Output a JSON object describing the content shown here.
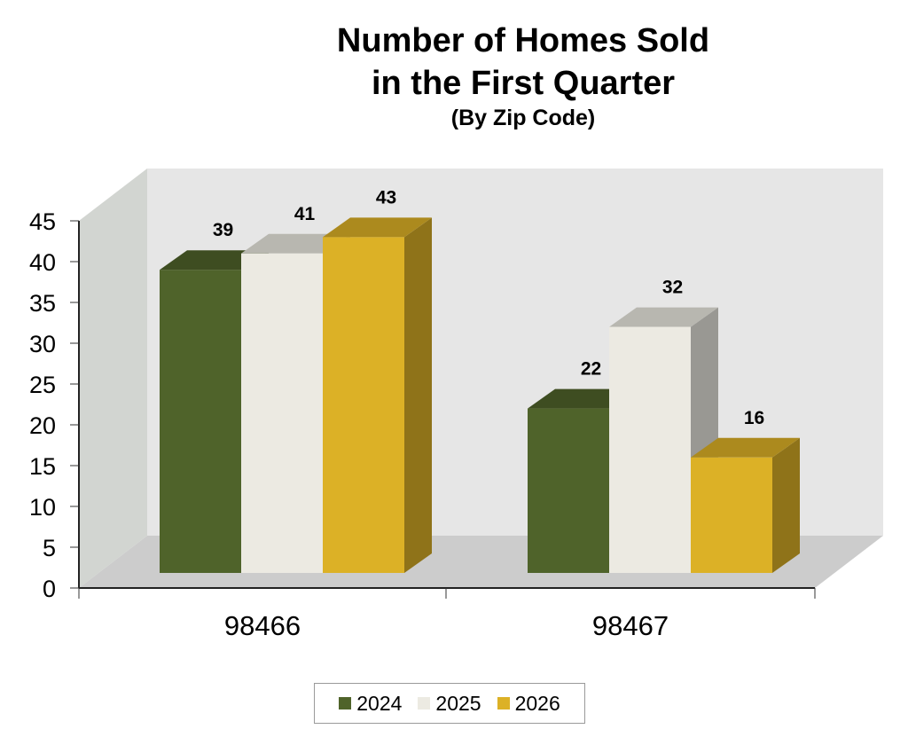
{
  "chart_data": {
    "type": "bar",
    "style": "3d-clustered-column",
    "title": "Number of Homes Sold in the First Quarter",
    "title_lines": [
      "Number of Homes Sold",
      "in the First Quarter"
    ],
    "subtitle": "(By Zip Code)",
    "xlabel": "",
    "ylabel": "",
    "categories": [
      "98466",
      "98467"
    ],
    "series": [
      {
        "name": "2024",
        "values": [
          39,
          22
        ],
        "color": "#4f632a"
      },
      {
        "name": "2025",
        "values": [
          41,
          32
        ],
        "color": "#eceae2"
      },
      {
        "name": "2026",
        "values": [
          43,
          16
        ],
        "color": "#dcb126"
      }
    ],
    "ylim": [
      0,
      45
    ],
    "yticks": [
      "0",
      "5",
      "10",
      "15",
      "20",
      "25",
      "30",
      "35",
      "40",
      "45"
    ],
    "data_labels": true,
    "grid": false,
    "legend_position": "bottom"
  },
  "legend": {
    "items": [
      {
        "label": "2024",
        "color": "#4f632a"
      },
      {
        "label": "2025",
        "color": "#eceae2"
      },
      {
        "label": "2026",
        "color": "#dcb126"
      }
    ]
  }
}
